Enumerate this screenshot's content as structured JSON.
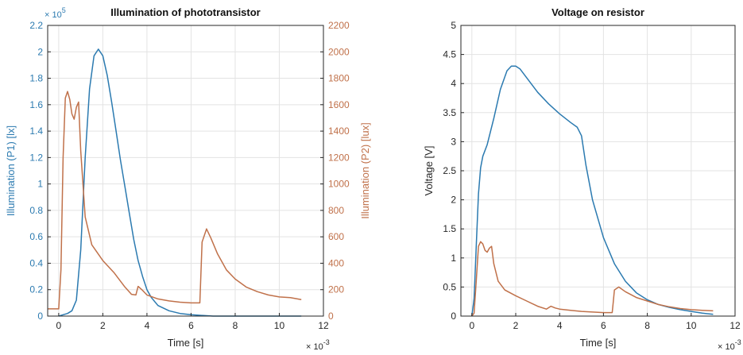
{
  "chart_data": [
    {
      "type": "line",
      "title": "Illumination of phototransistor",
      "xlabel": "Time [s]",
      "x_multiplier": "× 10",
      "x_multiplier_exp": "-3",
      "xlim": [
        -0.5,
        12
      ],
      "xticks": [
        "0",
        "2",
        "4",
        "6",
        "8",
        "10",
        "12"
      ],
      "grid": true,
      "axes": {
        "left": {
          "label": "Illumination (P1) [lx]",
          "ylim": [
            0,
            2.2
          ],
          "ticks": [
            "0",
            "0.2",
            "0.4",
            "0.6",
            "0.8",
            "1",
            "1.2",
            "1.4",
            "1.6",
            "1.8",
            "2",
            "2.2"
          ],
          "multiplier": "× 10",
          "multiplier_exp": "5",
          "color": "#2b7ab0"
        },
        "right": {
          "label": "Illumination (P2) [lux]",
          "ylim": [
            0,
            2200
          ],
          "ticks": [
            "0",
            "200",
            "400",
            "600",
            "800",
            "1000",
            "1200",
            "1400",
            "1600",
            "1800",
            "2000",
            "2200"
          ],
          "color": "#c0714a"
        }
      },
      "series": [
        {
          "axis": "left",
          "color": "#2b7ab0",
          "x": [
            0,
            0.2,
            0.4,
            0.6,
            0.8,
            1.0,
            1.2,
            1.4,
            1.6,
            1.8,
            2.0,
            2.2,
            2.4,
            2.6,
            2.8,
            3.0,
            3.2,
            3.4,
            3.6,
            3.8,
            4.0,
            4.2,
            4.5,
            5.0,
            5.5,
            6.0,
            7,
            8,
            9,
            10,
            11
          ],
          "y": [
            0,
            0.01,
            0.02,
            0.04,
            0.12,
            0.5,
            1.2,
            1.72,
            1.97,
            2.02,
            1.97,
            1.82,
            1.62,
            1.4,
            1.18,
            0.98,
            0.78,
            0.58,
            0.42,
            0.3,
            0.2,
            0.14,
            0.08,
            0.04,
            0.02,
            0.01,
            0,
            0,
            0,
            0,
            0
          ]
        },
        {
          "axis": "right",
          "color": "#c0714a",
          "x": [
            -0.5,
            0,
            0.1,
            0.2,
            0.3,
            0.4,
            0.5,
            0.6,
            0.7,
            0.8,
            0.9,
            1.0,
            1.2,
            1.5,
            2,
            2.5,
            3,
            3.3,
            3.5,
            3.6,
            3.8,
            4,
            4.5,
            5,
            5.5,
            6,
            6.4,
            6.45,
            6.5,
            6.7,
            6.9,
            7.2,
            7.6,
            8,
            8.5,
            9,
            9.5,
            10,
            10.5,
            11
          ],
          "y": [
            55,
            55,
            350,
            1200,
            1650,
            1700,
            1640,
            1530,
            1490,
            1580,
            1620,
            1250,
            750,
            540,
            420,
            330,
            220,
            165,
            160,
            225,
            195,
            160,
            130,
            115,
            105,
            100,
            100,
            330,
            560,
            660,
            590,
            470,
            350,
            280,
            220,
            185,
            160,
            145,
            140,
            125
          ]
        }
      ]
    },
    {
      "type": "line",
      "title": "Voltage on resistor",
      "xlabel": "Time [s]",
      "ylabel": "Voltage [V]",
      "x_multiplier": "× 10",
      "x_multiplier_exp": "-3",
      "xlim": [
        -0.5,
        12
      ],
      "ylim": [
        0,
        5
      ],
      "xticks": [
        "0",
        "2",
        "4",
        "6",
        "8",
        "10",
        "12"
      ],
      "yticks": [
        "0",
        "0.5",
        "1",
        "1.5",
        "2",
        "2.5",
        "3",
        "3.5",
        "4",
        "4.5",
        "5"
      ],
      "grid": true,
      "series": [
        {
          "color": "#2b7ab0",
          "x": [
            0,
            0.1,
            0.2,
            0.3,
            0.4,
            0.5,
            0.7,
            1.0,
            1.3,
            1.6,
            1.8,
            2.0,
            2.2,
            2.5,
            3,
            3.5,
            4,
            4.5,
            4.8,
            5.0,
            5.2,
            5.5,
            6,
            6.5,
            7,
            7.5,
            8,
            8.5,
            9,
            9.5,
            10,
            10.5,
            11
          ],
          "y": [
            0,
            0.3,
            1.2,
            2.1,
            2.55,
            2.75,
            2.95,
            3.4,
            3.9,
            4.22,
            4.3,
            4.3,
            4.25,
            4.1,
            3.85,
            3.65,
            3.48,
            3.33,
            3.25,
            3.1,
            2.6,
            2.0,
            1.35,
            0.9,
            0.6,
            0.4,
            0.28,
            0.2,
            0.15,
            0.11,
            0.08,
            0.05,
            0.03
          ]
        },
        {
          "color": "#c0714a",
          "x": [
            0,
            0.1,
            0.2,
            0.3,
            0.4,
            0.5,
            0.6,
            0.7,
            0.8,
            0.9,
            1.0,
            1.2,
            1.5,
            2,
            2.5,
            3,
            3.4,
            3.6,
            3.8,
            4,
            4.5,
            5,
            5.5,
            6,
            6.4,
            6.45,
            6.5,
            6.7,
            7,
            7.5,
            8,
            8.5,
            9,
            9.5,
            10,
            10.5,
            11
          ],
          "y": [
            0,
            0.05,
            0.6,
            1.2,
            1.28,
            1.24,
            1.13,
            1.1,
            1.17,
            1.2,
            0.9,
            0.6,
            0.45,
            0.35,
            0.26,
            0.17,
            0.12,
            0.17,
            0.14,
            0.12,
            0.1,
            0.08,
            0.07,
            0.06,
            0.06,
            0.25,
            0.45,
            0.5,
            0.42,
            0.32,
            0.26,
            0.2,
            0.16,
            0.13,
            0.11,
            0.1,
            0.09
          ]
        }
      ]
    }
  ]
}
